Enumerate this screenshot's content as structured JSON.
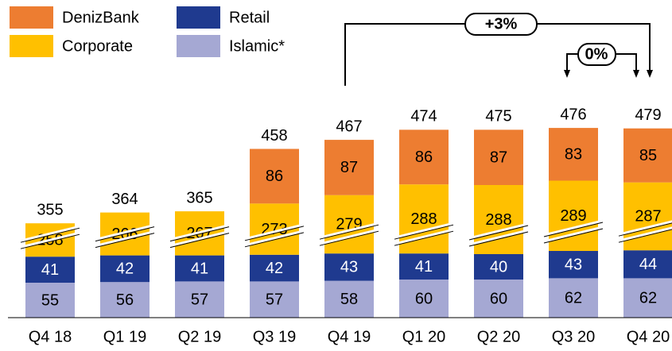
{
  "chart_data": {
    "type": "bar",
    "stacked": true,
    "categories": [
      "Q4 18",
      "Q1 19",
      "Q2 19",
      "Q3 19",
      "Q4 19",
      "Q1 20",
      "Q2 20",
      "Q3 20",
      "Q4 20"
    ],
    "series": [
      {
        "name": "Islamic*",
        "color": "#a5a8d3",
        "values": [
          55,
          56,
          57,
          57,
          58,
          60,
          60,
          62,
          62
        ]
      },
      {
        "name": "Retail",
        "color": "#1f3a8f",
        "values": [
          41,
          42,
          41,
          42,
          43,
          41,
          40,
          43,
          44
        ]
      },
      {
        "name": "Corporate",
        "color": "#ffc000",
        "values": [
          258,
          266,
          267,
          273,
          279,
          288,
          288,
          289,
          287
        ]
      },
      {
        "name": "DenizBank",
        "color": "#ed7d31",
        "values": [
          null,
          null,
          null,
          86,
          87,
          86,
          87,
          83,
          85
        ]
      }
    ],
    "totals": [
      355,
      364,
      365,
      458,
      467,
      474,
      475,
      476,
      479
    ],
    "annotations": [
      "+3%",
      "0%"
    ]
  }
}
